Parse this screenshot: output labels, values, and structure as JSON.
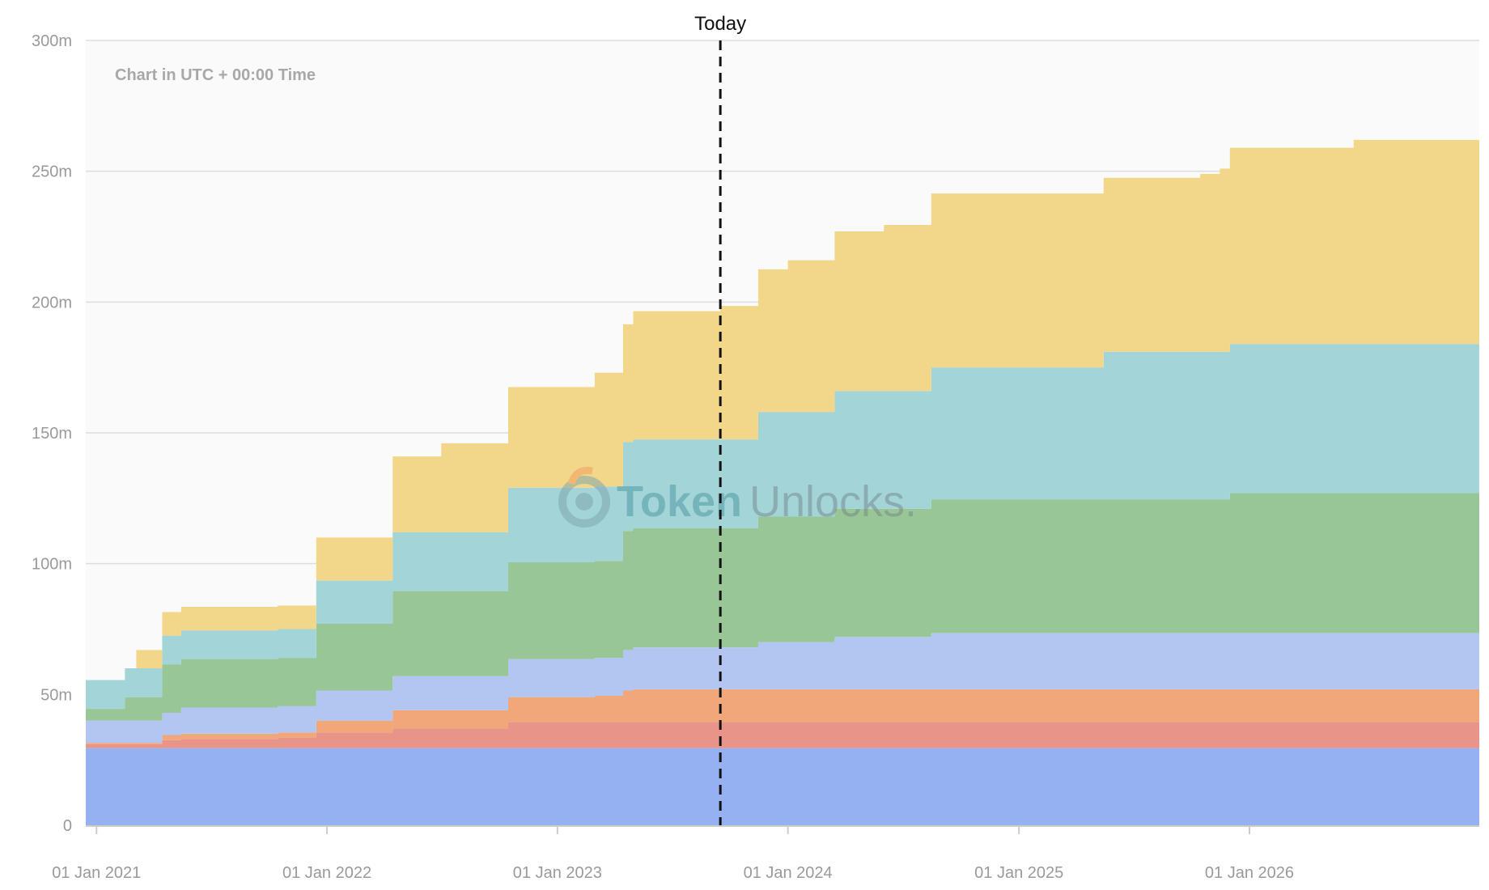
{
  "chart_data": {
    "type": "area",
    "stacked": true,
    "step": true,
    "annotation_label": "Today",
    "note": "Chart in UTC + 00:00 Time",
    "watermark": {
      "part1": "Token",
      "part2": "Unlocks."
    },
    "ylim": [
      0,
      300
    ],
    "yticks": [
      0,
      50,
      100,
      150,
      200,
      250,
      300
    ],
    "ytick_labels": [
      "0",
      "50m",
      "100m",
      "150m",
      "200m",
      "250m",
      "300m"
    ],
    "xlim": [
      "2020-12-15",
      "2026-12-31"
    ],
    "xticks": [
      "2021-01-01",
      "2022-01-01",
      "2023-01-01",
      "2024-01-01",
      "2025-01-01",
      "2026-01-01"
    ],
    "xtick_labels": [
      "01 Jan 2021",
      "01 Jan 2022",
      "01 Jan 2023",
      "01 Jan 2024",
      "01 Jan 2025",
      "01 Jan 2026"
    ],
    "today": "2023-09-16",
    "grid": true,
    "x": [
      "2020-12-15",
      "2021-02-15",
      "2021-03-05",
      "2021-04-15",
      "2021-05-15",
      "2021-10-15",
      "2021-12-15",
      "2022-04-15",
      "2022-07-01",
      "2022-10-15",
      "2023-01-01",
      "2023-03-01",
      "2023-04-15",
      "2023-05-01",
      "2023-09-16",
      "2023-11-15",
      "2024-01-01",
      "2024-03-15",
      "2024-06-01",
      "2024-08-15",
      "2025-03-01",
      "2025-05-15",
      "2025-07-15",
      "2025-10-15",
      "2025-11-15",
      "2025-12-01",
      "2026-01-01",
      "2026-05-15",
      "2026-06-15",
      "2026-12-31"
    ],
    "series": [
      {
        "color": "#95b1f1",
        "values": [
          29.5,
          29.5,
          29.5,
          29.5,
          29.5,
          29.5,
          29.5,
          29.5,
          29.5,
          29.5,
          29.5,
          29.5,
          29.5,
          29.5,
          29.5,
          29.5,
          29.5,
          29.5,
          29.5,
          29.5,
          29.5,
          29.5,
          29.5,
          29.5,
          29.5,
          29.5,
          29.5,
          29.5,
          29.5,
          29.5
        ]
      },
      {
        "color": "#e89488",
        "values": [
          1.5,
          1.5,
          1.5,
          3,
          3.5,
          4,
          6,
          7.5,
          7.5,
          10,
          10,
          10,
          10,
          10,
          10,
          10,
          10,
          10,
          10,
          10,
          10,
          10,
          10,
          10,
          10,
          10,
          10,
          10,
          10,
          10
        ]
      },
      {
        "color": "#f0a77a",
        "values": [
          0.5,
          0.5,
          0.5,
          2,
          2,
          2,
          4.5,
          7,
          7,
          9.5,
          9.5,
          10,
          12,
          12.5,
          12.5,
          12.5,
          12.5,
          12.5,
          12.5,
          12.5,
          12.5,
          12.5,
          12.5,
          12.5,
          12.5,
          12.5,
          12.5,
          12.5,
          12.5,
          12.5
        ]
      },
      {
        "color": "#b3c6f2",
        "values": [
          8.5,
          8.5,
          8.5,
          8.5,
          10,
          10,
          11.5,
          13,
          13,
          14.5,
          14.5,
          14.5,
          15.5,
          16,
          16,
          18,
          18,
          20,
          20,
          21.5,
          21.5,
          21.5,
          21.5,
          21.5,
          21.5,
          21.5,
          21.5,
          21.5,
          21.5,
          21.5
        ]
      },
      {
        "color": "#98c696",
        "values": [
          4.5,
          9,
          9,
          18.5,
          18.5,
          18.5,
          25.5,
          32.5,
          32.5,
          37,
          37,
          37,
          45.5,
          45.5,
          45.5,
          48,
          48,
          49,
          49,
          51,
          51,
          51,
          51,
          51,
          51,
          53.5,
          53.5,
          53.5,
          53.5,
          53.5
        ]
      },
      {
        "color": "#a3d4d8",
        "values": [
          11,
          11,
          11,
          11,
          11,
          11,
          16.5,
          22.5,
          22.5,
          28.5,
          28.5,
          28.5,
          34,
          34,
          34,
          40,
          40,
          45,
          45,
          50.5,
          50.5,
          56.5,
          56.5,
          56.5,
          56.5,
          57,
          57,
          57,
          57,
          57
        ]
      },
      {
        "color": "#f2d78b",
        "values": [
          0,
          0,
          7,
          9,
          9,
          9,
          16.5,
          29,
          34,
          38.5,
          38.5,
          43.5,
          45,
          49,
          51,
          54.5,
          58,
          61,
          63.5,
          66.5,
          66.5,
          66.5,
          66.5,
          68,
          70,
          75,
          75,
          75,
          78,
          78
        ]
      }
    ]
  }
}
